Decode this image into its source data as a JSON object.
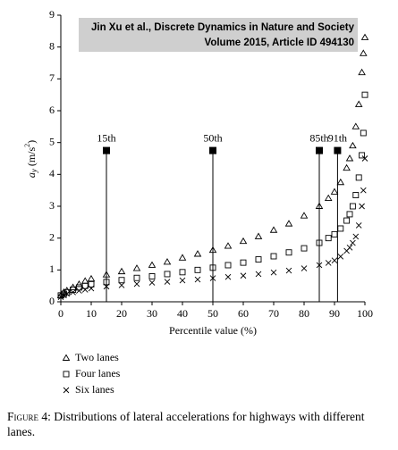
{
  "chart_data": {
    "type": "scatter",
    "x_label": "Percentile value (%)",
    "y_label_parts": [
      "a",
      "y",
      " (m/s",
      "2",
      ")"
    ],
    "x": [
      0,
      1,
      2,
      4,
      6,
      8,
      10,
      15,
      20,
      25,
      30,
      35,
      40,
      45,
      50,
      55,
      60,
      65,
      70,
      75,
      80,
      85,
      88,
      90,
      92,
      94,
      95,
      96,
      97,
      98,
      99,
      99.5,
      100
    ],
    "series": [
      {
        "name": "Two lanes",
        "marker": "triangle",
        "color": "#000000",
        "values": [
          0.2,
          0.3,
          0.35,
          0.45,
          0.55,
          0.65,
          0.72,
          0.85,
          0.95,
          1.05,
          1.15,
          1.25,
          1.38,
          1.5,
          1.62,
          1.75,
          1.9,
          2.05,
          2.25,
          2.45,
          2.7,
          3.0,
          3.25,
          3.45,
          3.75,
          4.2,
          4.5,
          4.9,
          5.5,
          6.2,
          7.2,
          7.8,
          8.3
        ]
      },
      {
        "name": "Four lanes",
        "marker": "square",
        "color": "#000000",
        "values": [
          0.2,
          0.25,
          0.3,
          0.38,
          0.45,
          0.5,
          0.55,
          0.62,
          0.68,
          0.75,
          0.8,
          0.87,
          0.93,
          1.0,
          1.07,
          1.15,
          1.23,
          1.33,
          1.43,
          1.55,
          1.68,
          1.85,
          2.0,
          2.12,
          2.3,
          2.55,
          2.75,
          3.0,
          3.35,
          3.9,
          4.6,
          5.3,
          6.5
        ]
      },
      {
        "name": "Six lanes",
        "marker": "cross",
        "color": "#000000",
        "values": [
          0.15,
          0.2,
          0.25,
          0.3,
          0.35,
          0.38,
          0.42,
          0.48,
          0.52,
          0.56,
          0.6,
          0.63,
          0.67,
          0.7,
          0.74,
          0.78,
          0.82,
          0.87,
          0.92,
          0.98,
          1.05,
          1.15,
          1.22,
          1.3,
          1.42,
          1.6,
          1.7,
          1.85,
          2.05,
          2.4,
          3.0,
          3.5,
          4.5
        ]
      }
    ],
    "annotations": [
      {
        "x": 15,
        "y": 4.75,
        "label": "15th"
      },
      {
        "x": 50,
        "y": 4.75,
        "label": "50th"
      },
      {
        "x": 85,
        "y": 4.75,
        "label": "85th"
      },
      {
        "x": 91,
        "y": 4.75,
        "label": "91th"
      }
    ],
    "xlim": [
      0,
      100
    ],
    "xticks": [
      0,
      10,
      20,
      30,
      40,
      50,
      60,
      70,
      80,
      90,
      100
    ],
    "ylim": [
      0,
      9
    ],
    "yticks": [
      0,
      1,
      2,
      3,
      4,
      5,
      6,
      7,
      8,
      9
    ],
    "grid": false,
    "source": [
      "Jin Xu et al., Discrete Dynamics in Nature and Society",
      "Volume 2015, Article ID 494130"
    ],
    "caption_label": "Figure 4:",
    "caption": "Distributions of lateral accelerations for highways with different lanes."
  }
}
